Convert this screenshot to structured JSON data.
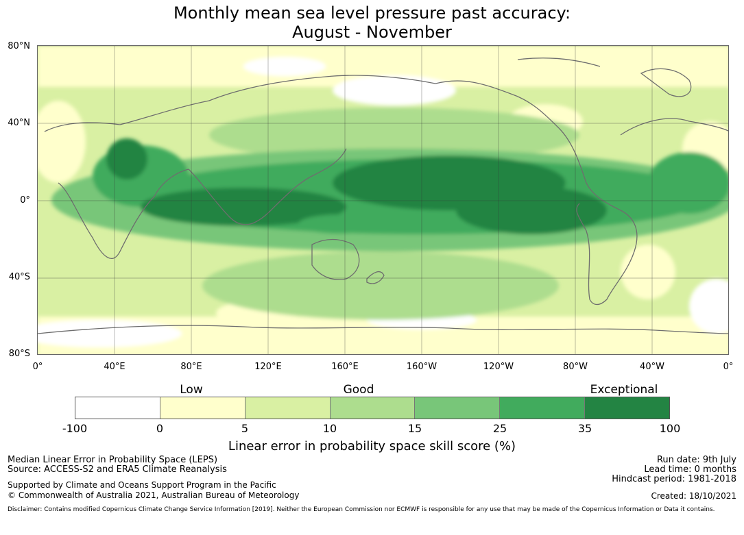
{
  "title": {
    "line1": "Monthly mean sea level pressure past accuracy:",
    "line2": "August - November"
  },
  "map": {
    "lat_labels": [
      "80°N",
      "40°N",
      "0°",
      "40°S",
      "80°S"
    ],
    "lon_labels": [
      "0°",
      "40°E",
      "80°E",
      "120°E",
      "160°E",
      "160°W",
      "120°W",
      "80°W",
      "40°W",
      "0°"
    ]
  },
  "legend": {
    "categories": [
      "Low",
      "Good",
      "Exceptional"
    ],
    "colors": [
      "#ffffff",
      "#ffffcc",
      "#d9f0a3",
      "#addd8e",
      "#78c679",
      "#41ab5d",
      "#238443"
    ],
    "ticks": [
      "-100",
      "0",
      "5",
      "10",
      "15",
      "25",
      "35",
      "100"
    ],
    "title": "Linear error in probability space skill score (%)"
  },
  "footer": {
    "left": {
      "line1": "Median Linear Error in Probability Space (LEPS)",
      "line2": "Source: ACCESS-S2 and ERA5 Climate Reanalysis",
      "line3": "Supported by Climate and Oceans Support Program in the Pacific",
      "line4": "© Commonwealth of Australia 2021, Australian Bureau of Meteorology"
    },
    "right": {
      "run_date": "Run date: 9th July",
      "lead_time": "Lead time: 0 months",
      "hindcast": "Hindcast period: 1981-2018",
      "created": "Created: 18/10/2021"
    },
    "disclaimer": "Disclaimer: Contains modified Copernicus Climate Change Service Information [2019]. Neither the European Commission nor ECMWF is responsible for any use that may be made of the Copernicus Information or Data it contains."
  }
}
